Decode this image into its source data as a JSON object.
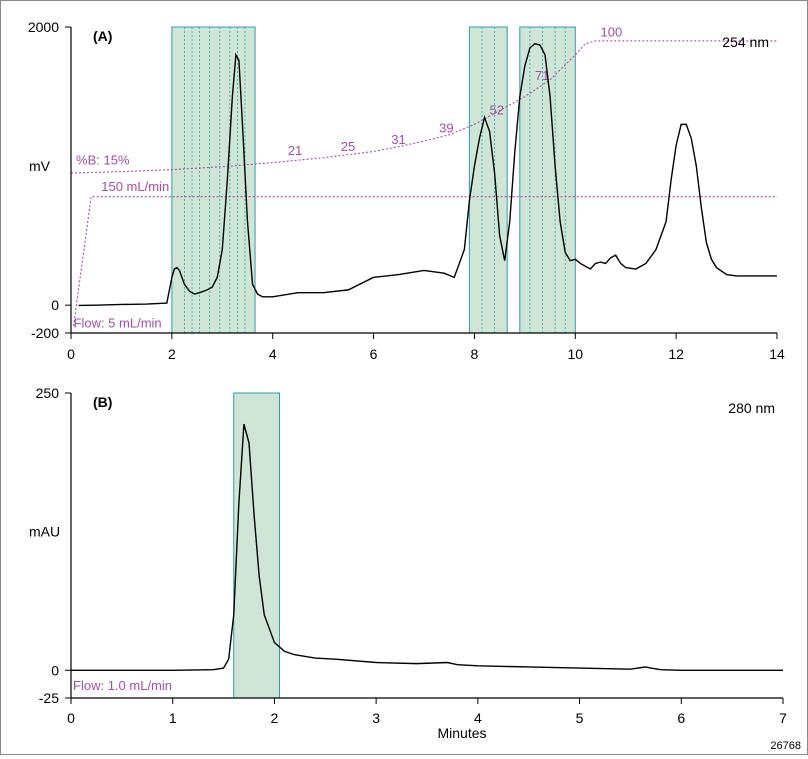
{
  "code_label": "26768",
  "chart_data": [
    {
      "type": "line",
      "panel_label": "(A)",
      "wavelength": "254 nm",
      "ylabel": "mV",
      "xlabel": "",
      "xlim": [
        0,
        14
      ],
      "ylim": [
        -200,
        2000
      ],
      "x_ticks": [
        0,
        2,
        4,
        6,
        8,
        10,
        12,
        14
      ],
      "y_ticks": [
        {
          "value": 2000,
          "label": "2000"
        },
        {
          "value": 0,
          "label": "0"
        },
        {
          "value": -200,
          "label": "-200"
        }
      ],
      "ylabel_value": 1000,
      "trace": {
        "x": [
          0.15,
          0.5,
          1.0,
          1.5,
          1.9,
          2.0,
          2.05,
          2.1,
          2.15,
          2.25,
          2.35,
          2.45,
          2.55,
          2.7,
          2.8,
          2.9,
          3.0,
          3.1,
          3.2,
          3.27,
          3.33,
          3.4,
          3.5,
          3.6,
          3.7,
          3.8,
          4.0,
          4.5,
          5.0,
          5.5,
          6.0,
          6.5,
          7.0,
          7.4,
          7.6,
          7.8,
          7.9,
          8.0,
          8.1,
          8.2,
          8.3,
          8.4,
          8.5,
          8.6,
          8.7,
          8.8,
          8.9,
          9.0,
          9.1,
          9.2,
          9.3,
          9.4,
          9.5,
          9.6,
          9.7,
          9.8,
          9.9,
          10.0,
          10.1,
          10.2,
          10.3,
          10.4,
          10.5,
          10.6,
          10.7,
          10.8,
          10.9,
          11.0,
          11.2,
          11.4,
          11.6,
          11.8,
          11.9,
          12.0,
          12.1,
          12.2,
          12.3,
          12.4,
          12.5,
          12.6,
          12.7,
          12.8,
          13.0,
          13.2,
          13.5,
          14.0
        ],
        "y": [
          -2,
          0,
          5,
          8,
          15,
          200,
          260,
          270,
          250,
          150,
          100,
          80,
          90,
          110,
          130,
          200,
          400,
          900,
          1500,
          1800,
          1760,
          1300,
          600,
          150,
          80,
          60,
          60,
          90,
          90,
          110,
          200,
          220,
          250,
          230,
          200,
          400,
          750,
          1000,
          1200,
          1350,
          1250,
          950,
          500,
          320,
          600,
          1100,
          1500,
          1720,
          1850,
          1880,
          1870,
          1800,
          1500,
          1000,
          600,
          380,
          320,
          330,
          300,
          280,
          260,
          300,
          310,
          300,
          340,
          360,
          300,
          270,
          260,
          300,
          400,
          600,
          900,
          1150,
          1300,
          1300,
          1200,
          1000,
          700,
          450,
          330,
          270,
          220,
          210,
          210,
          210
        ]
      },
      "gradient_curve": {
        "x": [
          0,
          1,
          2,
          3,
          4,
          5,
          6,
          6.5,
          7,
          7.5,
          8,
          8.5,
          9,
          9.5,
          10,
          10.2,
          10.4,
          14
        ],
        "y": [
          950,
          960,
          975,
          995,
          1025,
          1060,
          1105,
          1140,
          1180,
          1225,
          1300,
          1400,
          1500,
          1620,
          1800,
          1880,
          1900,
          1900
        ]
      },
      "gradient_labels": [
        {
          "text": "%B: 15%",
          "x": 0.1,
          "y": 1010
        },
        {
          "text": "21",
          "x": 4.3,
          "y": 1080
        },
        {
          "text": "25",
          "x": 5.35,
          "y": 1110
        },
        {
          "text": "31",
          "x": 6.35,
          "y": 1160
        },
        {
          "text": "39",
          "x": 7.3,
          "y": 1240
        },
        {
          "text": "52",
          "x": 8.3,
          "y": 1370
        },
        {
          "text": "71",
          "x": 9.2,
          "y": 1620
        },
        {
          "text": "100",
          "x": 10.5,
          "y": 1930
        }
      ],
      "flow_curve": {
        "x": [
          0.05,
          0.4,
          14
        ],
        "y": [
          -150,
          780,
          780
        ]
      },
      "flow_labels": [
        {
          "text": "150 mL/min",
          "x": 0.6,
          "y": 820
        },
        {
          "text": "Flow: 5 mL/min",
          "x": 0.05,
          "y": -160
        }
      ],
      "fractions": [
        {
          "x0": 2.0,
          "x1": 3.65,
          "dividers": [
            2.25,
            2.4,
            2.55,
            2.75,
            2.95,
            3.15,
            3.3,
            3.45
          ]
        },
        {
          "x0": 7.9,
          "x1": 8.65,
          "dividers": [
            8.15,
            8.4
          ]
        },
        {
          "x0": 8.9,
          "x1": 10.0,
          "dividers": [
            9.1,
            9.35,
            9.6,
            9.8
          ]
        }
      ]
    },
    {
      "type": "line",
      "panel_label": "(B)",
      "wavelength": "280 nm",
      "ylabel": "mAU",
      "xlabel": "Minutes",
      "xlim": [
        0,
        7
      ],
      "ylim": [
        -25,
        250
      ],
      "x_ticks": [
        0,
        1,
        2,
        3,
        4,
        5,
        6,
        7
      ],
      "y_ticks": [
        {
          "value": 250,
          "label": "250"
        },
        {
          "value": 0,
          "label": "0"
        },
        {
          "value": -25,
          "label": "-25"
        }
      ],
      "ylabel_value": 125,
      "trace": {
        "x": [
          0,
          0.5,
          1.0,
          1.4,
          1.5,
          1.55,
          1.6,
          1.65,
          1.7,
          1.75,
          1.8,
          1.85,
          1.9,
          2.0,
          2.1,
          2.2,
          2.4,
          2.6,
          3.0,
          3.4,
          3.7,
          3.8,
          4.0,
          4.5,
          5.0,
          5.5,
          5.65,
          5.7,
          5.8,
          6.0,
          6.5,
          7.0
        ],
        "y": [
          0,
          0,
          0,
          0.5,
          2,
          10,
          50,
          150,
          222,
          205,
          140,
          85,
          50,
          25,
          17,
          14,
          11,
          10,
          7,
          6,
          7,
          5,
          4,
          3,
          2,
          1,
          3,
          2,
          0.5,
          0,
          0,
          0
        ]
      },
      "flow_labels": [
        {
          "text": "Flow: 1.0 mL/min",
          "x": 0.02,
          "y": -18
        }
      ],
      "fractions": [
        {
          "x0": 1.6,
          "x1": 2.05,
          "dividers": []
        }
      ]
    }
  ]
}
